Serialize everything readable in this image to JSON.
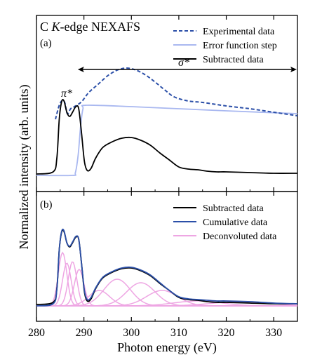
{
  "chart_data": [
    {
      "type": "line",
      "panel_label": "(a)",
      "title_prefix": "C ",
      "title_italic": "K",
      "title_suffix": "-edge NEXAFS",
      "xlabel": "Photon energy (eV)",
      "ylabel": "Normalized intensity (arb. units)",
      "xlim": [
        280,
        335
      ],
      "xticks": [
        "280",
        "290",
        "300",
        "310",
        "320",
        "330"
      ],
      "grid": false,
      "legend": "top-right",
      "annotations": [
        {
          "text": "π*",
          "x": 286.3,
          "y": 1.12
        },
        {
          "text": "σ*",
          "x": 306.5,
          "y": 1.62,
          "arrow_from": 288.7,
          "arrow_to": 335
        }
      ],
      "series": [
        {
          "name": "Experimental data",
          "color": "#2b4fa8",
          "style": "dashed",
          "x": [
            284,
            284.8,
            285.5,
            286.0,
            286.5,
            287.2,
            288.0,
            289.5,
            291.0,
            293.0,
            295.0,
            297.0,
            299.0,
            301.0,
            303.0,
            305.0,
            307.0,
            309.0,
            312.0,
            315.0,
            320.0,
            325.0,
            330.0,
            335.0
          ],
          "values": [
            0.8,
            1.0,
            1.07,
            1.03,
            0.88,
            0.95,
            0.98,
            1.05,
            1.18,
            1.3,
            1.42,
            1.5,
            1.53,
            1.5,
            1.43,
            1.33,
            1.22,
            1.12,
            1.06,
            1.04,
            0.99,
            0.95,
            0.9,
            0.85
          ]
        },
        {
          "name": "Error function step",
          "color": "#a9b8f0",
          "style": "solid",
          "x": [
            280,
            287.5,
            288.2,
            288.8,
            289.3,
            289.8,
            290.5,
            300,
            310,
            320,
            335
          ],
          "values": [
            0.0,
            0.0,
            0.04,
            0.3,
            0.7,
            0.95,
            1.0,
            0.98,
            0.95,
            0.92,
            0.88
          ]
        },
        {
          "name": "Subtracted data",
          "color": "#000000",
          "style": "solid",
          "x": [
            280,
            283.5,
            284.3,
            284.8,
            285.3,
            285.8,
            286.4,
            287.0,
            287.6,
            288.3,
            288.9,
            289.5,
            290.1,
            290.7,
            291.5,
            292.5,
            294,
            296,
            298,
            300,
            302,
            304,
            306,
            308,
            310,
            312,
            314,
            316,
            318,
            320,
            325,
            330,
            335
          ],
          "values": [
            0.02,
            0.05,
            0.25,
            0.8,
            1.05,
            1.06,
            0.9,
            0.84,
            0.9,
            0.98,
            0.95,
            0.6,
            0.2,
            0.07,
            0.1,
            0.25,
            0.4,
            0.48,
            0.53,
            0.54,
            0.5,
            0.43,
            0.32,
            0.22,
            0.12,
            0.09,
            0.08,
            0.06,
            0.05,
            0.05,
            0.04,
            0.03,
            0.03
          ]
        }
      ]
    },
    {
      "type": "line",
      "panel_label": "(b)",
      "xlabel": "Photon energy (eV)",
      "xlim": [
        280,
        335
      ],
      "grid": false,
      "legend": "top-right",
      "series": [
        {
          "name": "Subtracted data",
          "color": "#000000",
          "style": "solid",
          "x": [
            280,
            283.5,
            284.3,
            284.8,
            285.3,
            285.8,
            286.4,
            287.0,
            287.6,
            288.3,
            288.9,
            289.5,
            290.1,
            290.7,
            291.5,
            292.5,
            294,
            296,
            298,
            300,
            302,
            304,
            306,
            308,
            310,
            312,
            314,
            316,
            318,
            320,
            325,
            330,
            335
          ],
          "values": [
            0.02,
            0.05,
            0.25,
            0.8,
            1.05,
            1.06,
            0.9,
            0.84,
            0.9,
            0.98,
            0.95,
            0.6,
            0.2,
            0.07,
            0.1,
            0.25,
            0.4,
            0.48,
            0.53,
            0.54,
            0.5,
            0.43,
            0.32,
            0.22,
            0.12,
            0.09,
            0.08,
            0.06,
            0.05,
            0.05,
            0.04,
            0.03,
            0.03
          ]
        },
        {
          "name": "Cumulative data",
          "color": "#2b4fa8",
          "style": "solid",
          "x": [
            280,
            283.5,
            284.3,
            284.8,
            285.3,
            285.8,
            286.4,
            287.0,
            287.6,
            288.3,
            288.9,
            289.5,
            290.1,
            290.7,
            291.5,
            292.5,
            294,
            296,
            298,
            300,
            302,
            304,
            306,
            308,
            310,
            312,
            314,
            316,
            318,
            320,
            325,
            330,
            335
          ],
          "values": [
            0.0,
            0.03,
            0.24,
            0.8,
            1.06,
            1.07,
            0.9,
            0.85,
            0.91,
            0.99,
            0.95,
            0.6,
            0.22,
            0.09,
            0.12,
            0.26,
            0.41,
            0.49,
            0.54,
            0.55,
            0.51,
            0.44,
            0.33,
            0.22,
            0.13,
            0.1,
            0.09,
            0.08,
            0.07,
            0.07,
            0.06,
            0.04,
            0.03
          ]
        }
      ],
      "components": {
        "name": "Deconvoluted data",
        "color": "#eea6e3",
        "peaks": [
          {
            "center": 285.5,
            "height": 0.76,
            "width": 0.9
          },
          {
            "center": 286.4,
            "height": 0.61,
            "width": 0.9
          },
          {
            "center": 287.6,
            "height": 0.63,
            "width": 0.9
          },
          {
            "center": 289.0,
            "height": 0.52,
            "width": 1.0
          },
          {
            "center": 293.2,
            "height": 0.22,
            "width": 2.2
          },
          {
            "center": 297.0,
            "height": 0.38,
            "width": 2.8
          },
          {
            "center": 302.0,
            "height": 0.33,
            "width": 3.0
          },
          {
            "center": 306.5,
            "height": 0.22,
            "width": 3.3
          },
          {
            "center": 314.0,
            "height": 0.07,
            "width": 5.0
          },
          {
            "center": 323.0,
            "height": 0.06,
            "width": 6.0
          }
        ]
      }
    }
  ]
}
